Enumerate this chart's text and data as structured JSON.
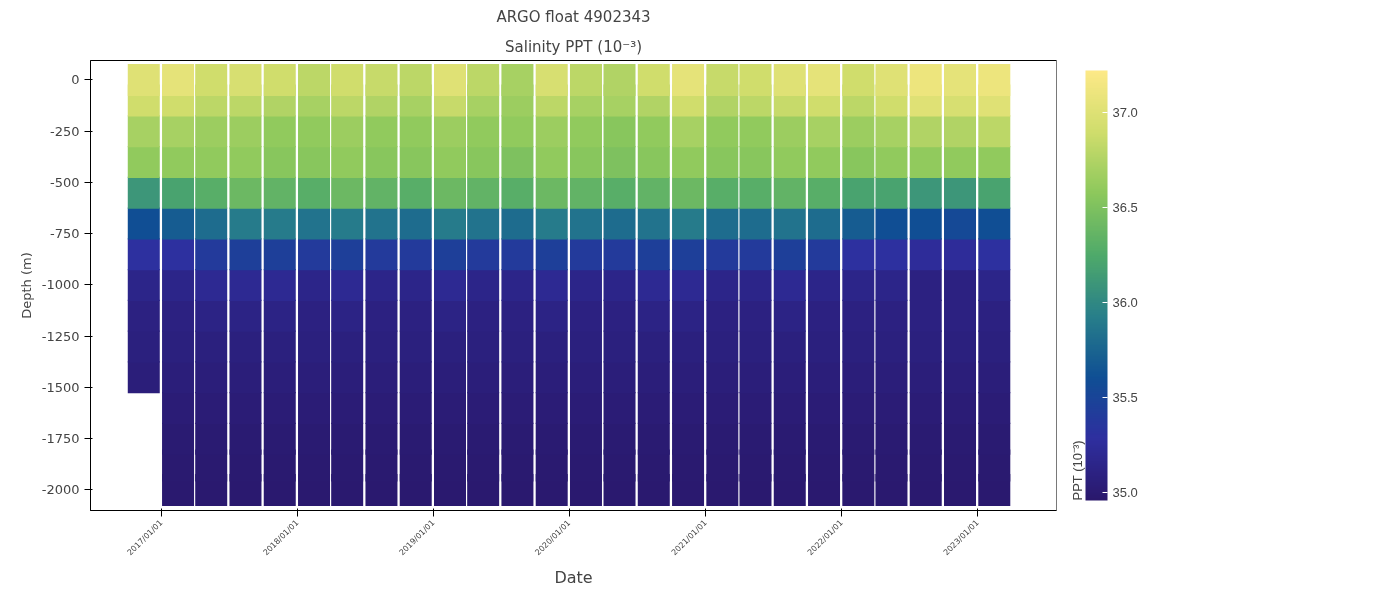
{
  "chart_data": {
    "type": "scatter",
    "title": "ARGO float 4902343",
    "subtitle": "Salinity PPT (10⁻³)",
    "xlabel": "Date",
    "ylabel": "Depth (m)",
    "clabel": "PPT (10⁻³)",
    "marker": "square",
    "grid": false,
    "xlim": [
      "2016-06-25",
      "2023-08-01"
    ],
    "xticks": [
      {
        "value": "2017-01-01",
        "label": "2017/01/01"
      },
      {
        "value": "2018-01-01",
        "label": "2018/01/01"
      },
      {
        "value": "2019-01-01",
        "label": "2019/01/01"
      },
      {
        "value": "2020-01-01",
        "label": "2020/01/01"
      },
      {
        "value": "2021-01-01",
        "label": "2021/01/01"
      },
      {
        "value": "2022-01-01",
        "label": "2022/01/01"
      },
      {
        "value": "2023-01-01",
        "label": "2023/01/01"
      }
    ],
    "ylim": [
      -2100,
      95
    ],
    "yticks": [
      0,
      -250,
      -500,
      -750,
      -1000,
      -1250,
      -1500,
      -1750,
      -2000
    ],
    "clim": [
      34.96,
      37.22
    ],
    "cticks": [
      {
        "value": 35,
        "label": "35.0"
      },
      {
        "value": 35.5,
        "label": "35.5"
      },
      {
        "value": 36,
        "label": "36.0"
      },
      {
        "value": 36.5,
        "label": "36.5"
      },
      {
        "value": 37,
        "label": "37.0"
      }
    ],
    "x": [
      "2016-11-15",
      "2017-02-15",
      "2017-05-15",
      "2017-08-15",
      "2017-11-15",
      "2018-02-15",
      "2018-05-15",
      "2018-08-15",
      "2018-11-15",
      "2019-02-15",
      "2019-05-15",
      "2019-08-15",
      "2019-11-15",
      "2020-02-15",
      "2020-05-15",
      "2020-08-15",
      "2020-11-15",
      "2021-02-15",
      "2021-05-15",
      "2021-08-15",
      "2021-11-15",
      "2022-02-15",
      "2022-05-15",
      "2022-08-15",
      "2022-11-15",
      "2023-02-15",
      "2016-11-15",
      "2017-02-15",
      "2017-05-15",
      "2017-08-15",
      "2017-11-15",
      "2018-02-15",
      "2018-05-15",
      "2018-08-15",
      "2018-11-15",
      "2019-02-15",
      "2019-05-15",
      "2019-08-15",
      "2019-11-15",
      "2020-02-15",
      "2020-05-15",
      "2020-08-15",
      "2020-11-15",
      "2021-02-15",
      "2021-05-15",
      "2021-08-15",
      "2021-11-15",
      "2022-02-15",
      "2022-05-15",
      "2022-08-15",
      "2022-11-15",
      "2023-02-15",
      "2016-11-15",
      "2017-02-15",
      "2017-05-15",
      "2017-08-15",
      "2017-11-15",
      "2018-02-15",
      "2018-05-15",
      "2018-08-15",
      "2018-11-15",
      "2019-02-15",
      "2019-05-15",
      "2019-08-15",
      "2019-11-15",
      "2020-02-15",
      "2020-05-15",
      "2020-08-15",
      "2020-11-15",
      "2021-02-15",
      "2021-05-15",
      "2021-08-15",
      "2021-11-15",
      "2022-02-15",
      "2022-05-15",
      "2022-08-15",
      "2022-11-15",
      "2023-02-15",
      "2016-11-15",
      "2017-02-15",
      "2017-05-15",
      "2017-08-15",
      "2017-11-15",
      "2018-02-15",
      "2018-05-15",
      "2018-08-15",
      "2018-11-15",
      "2019-02-15",
      "2019-05-15",
      "2019-08-15",
      "2019-11-15",
      "2020-02-15",
      "2020-05-15",
      "2020-08-15",
      "2020-11-15",
      "2021-02-15",
      "2021-05-15",
      "2021-08-15",
      "2021-11-15",
      "2022-02-15",
      "2022-05-15",
      "2022-08-15",
      "2022-11-15",
      "2023-02-15",
      "2016-11-15",
      "2017-02-15",
      "2017-05-15",
      "2017-08-15",
      "2017-11-15",
      "2018-02-15",
      "2018-05-15",
      "2018-08-15",
      "2018-11-15",
      "2019-02-15",
      "2019-05-15",
      "2019-08-15",
      "2019-11-15",
      "2020-02-15",
      "2020-05-15",
      "2020-08-15",
      "2020-11-15",
      "2021-02-15",
      "2021-05-15",
      "2021-08-15",
      "2021-11-15",
      "2022-02-15",
      "2022-05-15",
      "2022-08-15",
      "2022-11-15",
      "2023-02-15",
      "2016-11-15",
      "2017-02-15",
      "2017-05-15",
      "2017-08-15",
      "2017-11-15",
      "2018-02-15",
      "2018-05-15",
      "2018-08-15",
      "2018-11-15",
      "2019-02-15",
      "2019-05-15",
      "2019-08-15",
      "2019-11-15",
      "2020-02-15",
      "2020-05-15",
      "2020-08-15",
      "2020-11-15",
      "2021-02-15",
      "2021-05-15",
      "2021-08-15",
      "2021-11-15",
      "2022-02-15",
      "2022-05-15",
      "2022-08-15",
      "2022-11-15",
      "2023-02-15",
      "2016-11-15",
      "2017-02-15",
      "2017-05-15",
      "2017-08-15",
      "2017-11-15",
      "2018-02-15",
      "2018-05-15",
      "2018-08-15",
      "2018-11-15",
      "2019-02-15",
      "2019-05-15",
      "2019-08-15",
      "2019-11-15",
      "2020-02-15",
      "2020-05-15",
      "2020-08-15",
      "2020-11-15",
      "2021-02-15",
      "2021-05-15",
      "2021-08-15",
      "2021-11-15",
      "2022-02-15",
      "2022-05-15",
      "2022-08-15",
      "2022-11-15",
      "2023-02-15",
      "2016-11-15",
      "2017-02-15",
      "2017-05-15",
      "2017-08-15",
      "2017-11-15",
      "2018-02-15",
      "2018-05-15",
      "2018-08-15",
      "2018-11-15",
      "2019-02-15",
      "2019-05-15",
      "2019-08-15",
      "2019-11-15",
      "2020-02-15",
      "2020-05-15",
      "2020-08-15",
      "2020-11-15",
      "2021-02-15",
      "2021-05-15",
      "2021-08-15",
      "2021-11-15",
      "2022-02-15",
      "2022-05-15",
      "2022-08-15",
      "2022-11-15",
      "2023-02-15",
      "2016-11-15",
      "2017-02-15",
      "2017-05-15",
      "2017-08-15",
      "2017-11-15",
      "2018-02-15",
      "2018-05-15",
      "2018-08-15",
      "2018-11-15",
      "2019-02-15",
      "2019-05-15",
      "2019-08-15",
      "2019-11-15",
      "2020-02-15",
      "2020-05-15",
      "2020-08-15",
      "2020-11-15",
      "2021-02-15",
      "2021-05-15",
      "2021-08-15",
      "2021-11-15",
      "2022-02-15",
      "2022-05-15",
      "2022-08-15",
      "2022-11-15",
      "2023-02-15",
      "2016-11-15",
      "2017-02-15",
      "2017-05-15",
      "2017-08-15",
      "2017-11-15",
      "2018-02-15",
      "2018-05-15",
      "2018-08-15",
      "2018-11-15",
      "2019-02-15",
      "2019-05-15",
      "2019-08-15",
      "2019-11-15",
      "2020-02-15",
      "2020-05-15",
      "2020-08-15",
      "2020-11-15",
      "2021-02-15",
      "2021-05-15",
      "2021-08-15",
      "2021-11-15",
      "2022-02-15",
      "2022-05-15",
      "2022-08-15",
      "2022-11-15",
      "2023-02-15",
      "2016-11-15",
      "2017-02-15",
      "2017-05-15",
      "2017-08-15",
      "2017-11-15",
      "2018-02-15",
      "2018-05-15",
      "2018-08-15",
      "2018-11-15",
      "2019-02-15",
      "2019-05-15",
      "2019-08-15",
      "2019-11-15",
      "2020-02-15",
      "2020-05-15",
      "2020-08-15",
      "2020-11-15",
      "2021-02-15",
      "2021-05-15",
      "2021-08-15",
      "2021-11-15",
      "2022-02-15",
      "2022-05-15",
      "2022-08-15",
      "2022-11-15",
      "2023-02-15",
      "2017-02-15",
      "2017-05-15",
      "2017-08-15",
      "2017-11-15",
      "2018-02-15",
      "2018-05-15",
      "2018-08-15",
      "2018-11-15",
      "2019-02-15",
      "2019-05-15",
      "2019-08-15",
      "2019-11-15",
      "2020-02-15",
      "2020-05-15",
      "2020-08-15",
      "2020-11-15",
      "2021-02-15",
      "2021-05-15",
      "2021-08-15",
      "2021-11-15",
      "2022-02-15",
      "2022-05-15",
      "2022-08-15",
      "2022-11-15",
      "2023-02-15",
      "2017-02-15",
      "2017-05-15",
      "2017-08-15",
      "2017-11-15",
      "2018-02-15",
      "2018-05-15",
      "2018-08-15",
      "2018-11-15",
      "2019-02-15",
      "2019-05-15",
      "2019-08-15",
      "2019-11-15",
      "2020-02-15",
      "2020-05-15",
      "2020-08-15",
      "2020-11-15",
      "2021-02-15",
      "2021-05-15",
      "2021-08-15",
      "2021-11-15",
      "2022-02-15",
      "2022-05-15",
      "2022-08-15",
      "2022-11-15",
      "2023-02-15",
      "2017-02-15",
      "2017-05-15",
      "2017-08-15",
      "2017-11-15",
      "2018-02-15",
      "2018-05-15",
      "2018-08-15",
      "2018-11-15",
      "2019-02-15",
      "2019-05-15",
      "2019-08-15",
      "2019-11-15",
      "2020-02-15",
      "2020-05-15",
      "2020-08-15",
      "2020-11-15",
      "2021-02-15",
      "2021-05-15",
      "2021-08-15",
      "2021-11-15",
      "2022-02-15",
      "2022-05-15",
      "2022-08-15",
      "2022-11-15",
      "2023-02-15",
      "2017-02-15",
      "2017-05-15",
      "2017-08-15",
      "2017-11-15",
      "2018-02-15",
      "2018-05-15",
      "2018-08-15",
      "2018-11-15",
      "2019-02-15",
      "2019-05-15",
      "2019-08-15",
      "2019-11-15",
      "2020-02-15",
      "2020-05-15",
      "2020-08-15",
      "2020-11-15",
      "2021-02-15",
      "2021-05-15",
      "2021-08-15",
      "2021-11-15",
      "2022-02-15",
      "2022-05-15",
      "2022-08-15",
      "2022-11-15",
      "2023-02-15"
    ],
    "values": [
      0,
      0,
      0,
      0,
      0,
      0,
      0,
      0,
      0,
      0,
      0,
      0,
      0,
      0,
      0,
      0,
      0,
      0,
      0,
      0,
      0,
      0,
      0,
      0,
      0,
      0,
      -100,
      -100,
      -100,
      -100,
      -100,
      -100,
      -100,
      -100,
      -100,
      -100,
      -100,
      -100,
      -100,
      -100,
      -100,
      -100,
      -100,
      -100,
      -100,
      -100,
      -100,
      -100,
      -100,
      -100,
      -100,
      -100,
      -250,
      -250,
      -250,
      -250,
      -250,
      -250,
      -250,
      -250,
      -250,
      -250,
      -250,
      -250,
      -250,
      -250,
      -250,
      -250,
      -250,
      -250,
      -250,
      -250,
      -250,
      -250,
      -250,
      -250,
      -250,
      -250,
      -400,
      -400,
      -400,
      -400,
      -400,
      -400,
      -400,
      -400,
      -400,
      -400,
      -400,
      -400,
      -400,
      -400,
      -400,
      -400,
      -400,
      -400,
      -400,
      -400,
      -400,
      -400,
      -400,
      -400,
      -400,
      -400,
      -550,
      -550,
      -550,
      -550,
      -550,
      -550,
      -550,
      -550,
      -550,
      -550,
      -550,
      -550,
      -550,
      -550,
      -550,
      -550,
      -550,
      -550,
      -550,
      -550,
      -550,
      -550,
      -550,
      -550,
      -550,
      -550,
      -700,
      -700,
      -700,
      -700,
      -700,
      -700,
      -700,
      -700,
      -700,
      -700,
      -700,
      -700,
      -700,
      -700,
      -700,
      -700,
      -700,
      -700,
      -700,
      -700,
      -700,
      -700,
      -700,
      -700,
      -700,
      -700,
      -850,
      -850,
      -850,
      -850,
      -850,
      -850,
      -850,
      -850,
      -850,
      -850,
      -850,
      -850,
      -850,
      -850,
      -850,
      -850,
      -850,
      -850,
      -850,
      -850,
      -850,
      -850,
      -850,
      -850,
      -850,
      -850,
      -1000,
      -1000,
      -1000,
      -1000,
      -1000,
      -1000,
      -1000,
      -1000,
      -1000,
      -1000,
      -1000,
      -1000,
      -1000,
      -1000,
      -1000,
      -1000,
      -1000,
      -1000,
      -1000,
      -1000,
      -1000,
      -1000,
      -1000,
      -1000,
      -1000,
      -1000,
      -1150,
      -1150,
      -1150,
      -1150,
      -1150,
      -1150,
      -1150,
      -1150,
      -1150,
      -1150,
      -1150,
      -1150,
      -1150,
      -1150,
      -1150,
      -1150,
      -1150,
      -1150,
      -1150,
      -1150,
      -1150,
      -1150,
      -1150,
      -1150,
      -1150,
      -1150,
      -1300,
      -1300,
      -1300,
      -1300,
      -1300,
      -1300,
      -1300,
      -1300,
      -1300,
      -1300,
      -1300,
      -1300,
      -1300,
      -1300,
      -1300,
      -1300,
      -1300,
      -1300,
      -1300,
      -1300,
      -1300,
      -1300,
      -1300,
      -1300,
      -1300,
      -1300,
      -1450,
      -1450,
      -1450,
      -1450,
      -1450,
      -1450,
      -1450,
      -1450,
      -1450,
      -1450,
      -1450,
      -1450,
      -1450,
      -1450,
      -1450,
      -1450,
      -1450,
      -1450,
      -1450,
      -1450,
      -1450,
      -1450,
      -1450,
      -1450,
      -1450,
      -1450,
      -1600,
      -1600,
      -1600,
      -1600,
      -1600,
      -1600,
      -1600,
      -1600,
      -1600,
      -1600,
      -1600,
      -1600,
      -1600,
      -1600,
      -1600,
      -1600,
      -1600,
      -1600,
      -1600,
      -1600,
      -1600,
      -1600,
      -1600,
      -1600,
      -1600,
      -1750,
      -1750,
      -1750,
      -1750,
      -1750,
      -1750,
      -1750,
      -1750,
      -1750,
      -1750,
      -1750,
      -1750,
      -1750,
      -1750,
      -1750,
      -1750,
      -1750,
      -1750,
      -1750,
      -1750,
      -1750,
      -1750,
      -1750,
      -1750,
      -1750,
      -1880,
      -1880,
      -1880,
      -1880,
      -1880,
      -1880,
      -1880,
      -1880,
      -1880,
      -1880,
      -1880,
      -1880,
      -1880,
      -1880,
      -1880,
      -1880,
      -1880,
      -1880,
      -1880,
      -1880,
      -1880,
      -1880,
      -1880,
      -1880,
      -1880,
      -2000,
      -2000,
      -2000,
      -2000,
      -2000,
      -2000,
      -2000,
      -2000,
      -2000,
      -2000,
      -2000,
      -2000,
      -2000,
      -2000,
      -2000,
      -2000,
      -2000,
      -2000,
      -2000,
      -2000,
      -2000,
      -2000,
      -2000,
      -2000,
      -2000
    ],
    "cvalues": [
      37.0,
      37.05,
      36.9,
      36.95,
      36.9,
      36.8,
      36.9,
      36.85,
      36.8,
      37.0,
      36.8,
      36.7,
      36.95,
      36.8,
      36.75,
      36.9,
      37.05,
      36.85,
      36.9,
      37.0,
      37.05,
      36.9,
      37.0,
      37.1,
      37.05,
      37.1,
      36.9,
      36.9,
      36.8,
      36.8,
      36.75,
      36.7,
      36.8,
      36.75,
      36.7,
      36.85,
      36.7,
      36.65,
      36.8,
      36.7,
      36.7,
      36.75,
      36.9,
      36.75,
      36.8,
      36.85,
      36.9,
      36.8,
      36.9,
      37.0,
      36.95,
      37.0,
      36.7,
      36.7,
      36.65,
      36.65,
      36.6,
      36.6,
      36.65,
      36.6,
      36.6,
      36.65,
      36.6,
      36.6,
      36.65,
      36.6,
      36.55,
      36.6,
      36.7,
      36.6,
      36.6,
      36.65,
      36.7,
      36.65,
      36.7,
      36.75,
      36.75,
      36.8,
      36.6,
      36.6,
      36.6,
      36.6,
      36.55,
      36.55,
      36.6,
      36.55,
      36.55,
      36.6,
      36.55,
      36.5,
      36.6,
      36.55,
      36.5,
      36.55,
      36.6,
      36.55,
      36.55,
      36.6,
      36.6,
      36.55,
      36.6,
      36.6,
      36.6,
      36.6,
      36.1,
      36.2,
      36.3,
      36.4,
      36.35,
      36.3,
      36.4,
      36.35,
      36.3,
      36.4,
      36.35,
      36.3,
      36.4,
      36.35,
      36.3,
      36.35,
      36.4,
      36.3,
      36.3,
      36.35,
      36.3,
      36.2,
      36.2,
      36.1,
      36.1,
      36.2,
      35.6,
      35.7,
      35.8,
      35.9,
      35.9,
      35.85,
      35.9,
      35.85,
      35.8,
      35.9,
      35.85,
      35.8,
      35.9,
      35.85,
      35.8,
      35.85,
      35.9,
      35.8,
      35.8,
      35.85,
      35.8,
      35.7,
      35.6,
      35.6,
      35.55,
      35.6,
      35.3,
      35.3,
      35.4,
      35.45,
      35.45,
      35.4,
      35.45,
      35.4,
      35.4,
      35.45,
      35.4,
      35.4,
      35.45,
      35.4,
      35.4,
      35.45,
      35.45,
      35.4,
      35.4,
      35.45,
      35.4,
      35.3,
      35.3,
      35.25,
      35.25,
      35.3,
      35.15,
      35.15,
      35.2,
      35.2,
      35.2,
      35.15,
      35.2,
      35.15,
      35.15,
      35.2,
      35.15,
      35.15,
      35.2,
      35.15,
      35.15,
      35.2,
      35.2,
      35.15,
      35.15,
      35.2,
      35.15,
      35.15,
      35.15,
      35.1,
      35.1,
      35.15,
      35.1,
      35.1,
      35.12,
      35.12,
      35.12,
      35.1,
      35.12,
      35.1,
      35.1,
      35.12,
      35.1,
      35.1,
      35.12,
      35.1,
      35.1,
      35.12,
      35.12,
      35.1,
      35.1,
      35.12,
      35.1,
      35.1,
      35.1,
      35.1,
      35.1,
      35.1,
      35.08,
      35.08,
      35.08,
      35.08,
      35.08,
      35.08,
      35.08,
      35.08,
      35.08,
      35.08,
      35.08,
      35.08,
      35.08,
      35.08,
      35.08,
      35.08,
      35.08,
      35.08,
      35.08,
      35.08,
      35.08,
      35.08,
      35.08,
      35.08,
      35.08,
      35.08,
      35.05,
      35.05,
      35.05,
      35.05,
      35.05,
      35.05,
      35.05,
      35.05,
      35.05,
      35.05,
      35.05,
      35.05,
      35.05,
      35.05,
      35.05,
      35.05,
      35.05,
      35.05,
      35.05,
      35.05,
      35.05,
      35.05,
      35.05,
      35.05,
      35.05,
      35.05,
      35.03,
      35.03,
      35.03,
      35.03,
      35.03,
      35.03,
      35.03,
      35.03,
      35.03,
      35.03,
      35.03,
      35.03,
      35.03,
      35.03,
      35.03,
      35.03,
      35.03,
      35.03,
      35.03,
      35.03,
      35.03,
      35.03,
      35.03,
      35.03,
      35.03,
      35.0,
      35.0,
      35.0,
      35.0,
      35.0,
      35.0,
      35.0,
      35.0,
      35.0,
      35.0,
      35.0,
      35.0,
      35.0,
      35.0,
      35.0,
      35.0,
      35.0,
      35.0,
      35.0,
      35.0,
      35.0,
      35.0,
      35.0,
      35.0,
      35.0,
      34.99,
      34.99,
      34.99,
      34.99,
      34.99,
      34.99,
      34.99,
      34.99,
      34.99,
      34.99,
      34.99,
      34.99,
      34.99,
      34.99,
      34.99,
      34.99,
      34.99,
      34.99,
      34.99,
      34.99,
      34.99,
      34.99,
      34.99,
      34.99,
      34.99,
      34.98,
      34.98,
      34.98,
      34.98,
      34.98,
      34.98,
      34.98,
      34.98,
      34.98,
      34.98,
      34.98,
      34.98,
      34.98,
      34.98,
      34.98,
      34.98,
      34.98,
      34.98,
      34.98,
      34.98,
      34.98,
      34.98,
      34.98,
      34.98,
      34.98
    ]
  }
}
